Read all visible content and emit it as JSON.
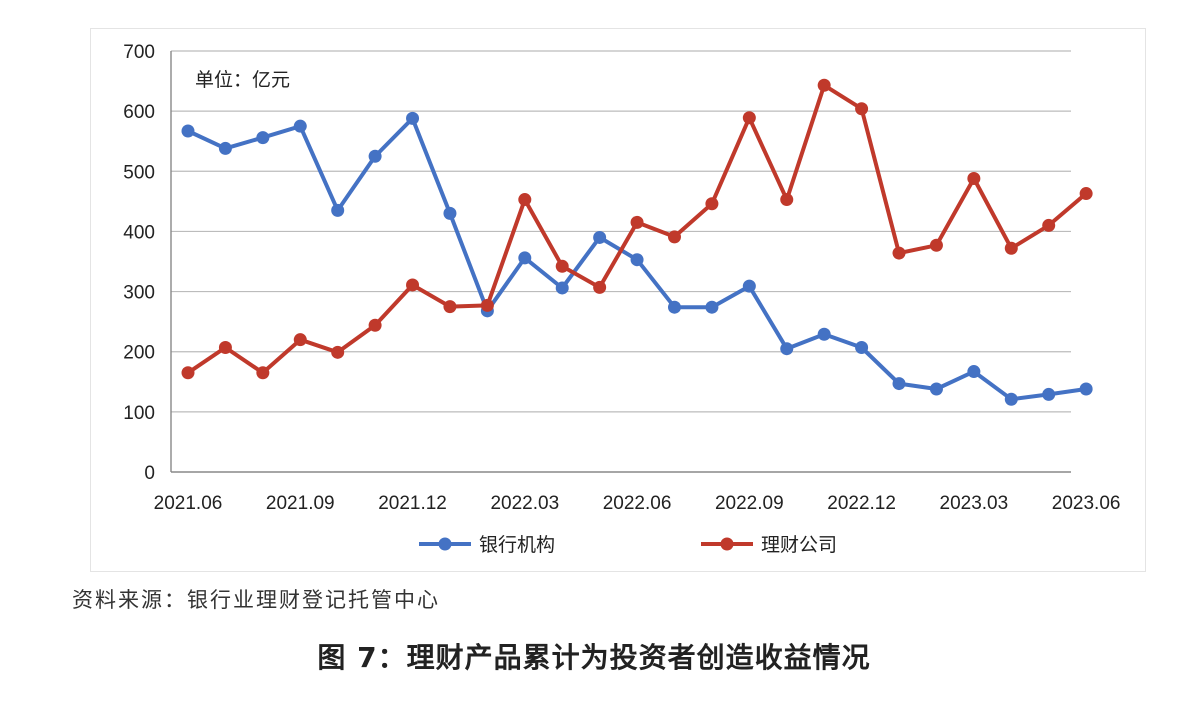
{
  "chart_data": {
    "type": "line",
    "title": "",
    "unit_label": "单位：亿元",
    "xlabel": "",
    "ylabel": "",
    "ylim": [
      0,
      700
    ],
    "yticks": [
      0,
      100,
      200,
      300,
      400,
      500,
      600,
      700
    ],
    "grid": true,
    "legend_position": "bottom",
    "x": [
      "2021.06",
      "2021.07",
      "2021.08",
      "2021.09",
      "2021.10",
      "2021.11",
      "2021.12",
      "2022.01",
      "2022.02",
      "2022.03",
      "2022.04",
      "2022.05",
      "2022.06",
      "2022.07",
      "2022.08",
      "2022.09",
      "2022.10",
      "2022.11",
      "2022.12",
      "2023.01",
      "2023.02",
      "2023.03",
      "2023.04",
      "2023.05",
      "2023.06"
    ],
    "xtick_labels": [
      "2021.06",
      "2021.09",
      "2021.12",
      "2022.03",
      "2022.06",
      "2022.09",
      "2022.12",
      "2023.03",
      "2023.06"
    ],
    "series": [
      {
        "name": "银行机构",
        "color": "#4472c4",
        "values": [
          567,
          538,
          556,
          575,
          435,
          525,
          588,
          430,
          268,
          356,
          306,
          390,
          353,
          274,
          274,
          309,
          205,
          229,
          207,
          147,
          138,
          167,
          121,
          129,
          138
        ]
      },
      {
        "name": "理财公司",
        "color": "#c0392b",
        "values": [
          165,
          207,
          165,
          220,
          199,
          244,
          311,
          275,
          277,
          453,
          342,
          307,
          415,
          391,
          446,
          589,
          453,
          643,
          604,
          364,
          377,
          488,
          372,
          410,
          463
        ]
      }
    ]
  },
  "source_note": "资料来源：银行业理财登记托管中心",
  "caption": "图 7：理财产品累计为投资者创造收益情况"
}
